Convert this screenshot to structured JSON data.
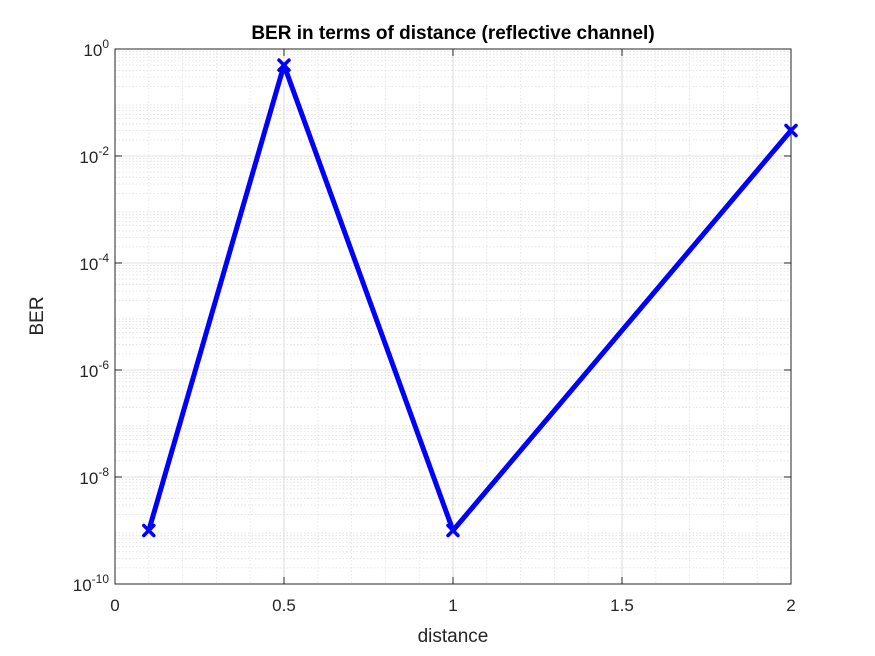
{
  "chart_data": {
    "type": "line",
    "title": "BER in terms of distance (reflective channel)",
    "xlabel": "distance",
    "ylabel": "BER",
    "xlim": [
      0,
      2
    ],
    "ylim": [
      1e-10,
      1
    ],
    "yscale": "log",
    "grid": true,
    "minor_grid": true,
    "x_ticks": [
      {
        "value": 0,
        "label": "0"
      },
      {
        "value": 0.5,
        "label": "0.5"
      },
      {
        "value": 1,
        "label": "1"
      },
      {
        "value": 1.5,
        "label": "1.5"
      },
      {
        "value": 2,
        "label": "2"
      }
    ],
    "y_ticks": [
      {
        "exp": -10,
        "base": "10",
        "power": "-10"
      },
      {
        "exp": -8,
        "base": "10",
        "power": "-8"
      },
      {
        "exp": -6,
        "base": "10",
        "power": "-6"
      },
      {
        "exp": -4,
        "base": "10",
        "power": "-4"
      },
      {
        "exp": -2,
        "base": "10",
        "power": "-2"
      },
      {
        "exp": 0,
        "base": "10",
        "power": "0"
      }
    ],
    "series": [
      {
        "color": "#0000ff",
        "marker": "x",
        "x": [
          0.1,
          0.5,
          1,
          2
        ],
        "y": [
          1e-09,
          0.5,
          1e-09,
          0.03
        ]
      }
    ]
  }
}
